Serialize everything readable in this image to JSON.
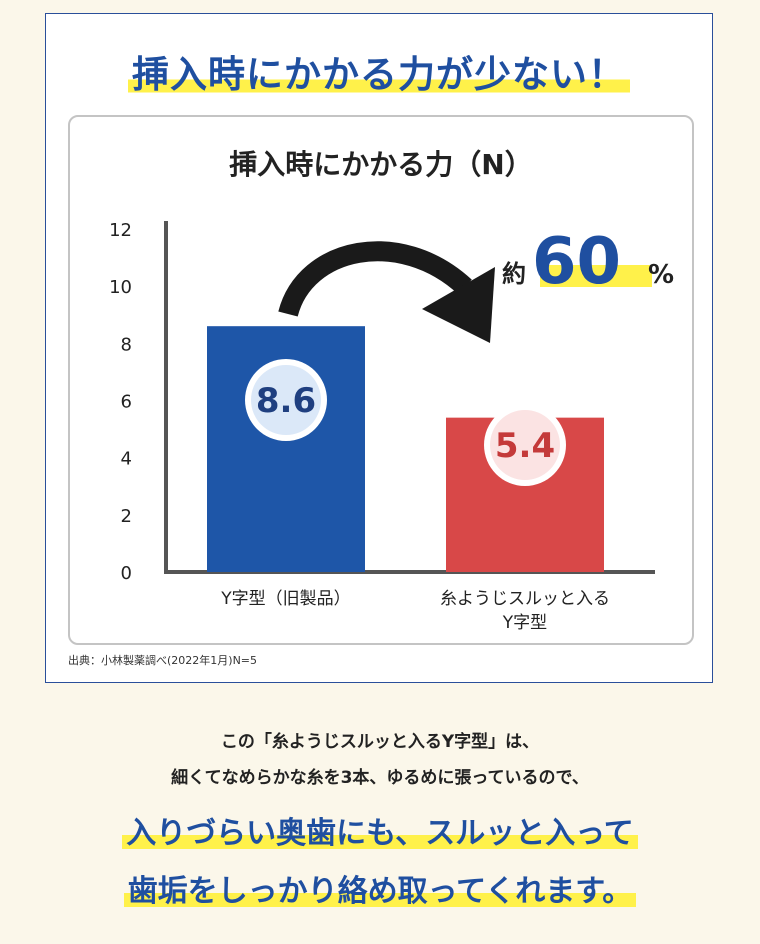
{
  "headline": "挿入時にかかる力が少ない！",
  "chart_data": {
    "type": "bar",
    "title": "挿入時にかかる力（N）",
    "categories": [
      "Y字型（旧製品）",
      "糸ようじスルッと入る\nY字型"
    ],
    "values": [
      8.6,
      5.4
    ],
    "value_labels": [
      "8.6",
      "5.4"
    ],
    "bar_colors": [
      "#1e56a8",
      "#d84848"
    ],
    "ylim": [
      0,
      12
    ],
    "yticks": [
      0,
      2,
      4,
      6,
      8,
      10,
      12
    ],
    "grid": false,
    "annotation": {
      "prefix": "約",
      "number": "60",
      "suffix": "%"
    }
  },
  "source": "出典：小林製薬調べ(2022年1月)N=5",
  "caption": {
    "line1": "この「糸ようじスルッと入るY字型」は、",
    "line2": "細くてなめらかな糸を3本、ゆるめに張っているので、",
    "highlight1": "入りづらい奥歯にも、スルッと入って",
    "highlight2": "歯垢をしっかり絡め取ってくれます。"
  },
  "colors": {
    "accent_blue": "#1f4fa0",
    "highlight_yellow": "#fff14a",
    "background": "#fbf7ea"
  }
}
